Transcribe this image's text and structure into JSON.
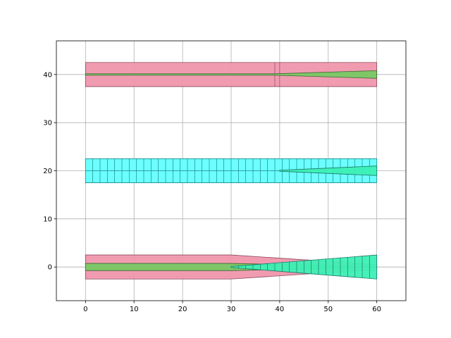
{
  "chart_data": {
    "type": "area",
    "title": "",
    "xlabel": "",
    "ylabel": "",
    "xlim": [
      -6,
      66
    ],
    "ylim": [
      -7,
      47
    ],
    "grid": true,
    "xticks": [
      0,
      10,
      20,
      30,
      40,
      50,
      60
    ],
    "yticks": [
      0,
      10,
      20,
      30,
      40
    ],
    "xtick_labels": [
      "0",
      "10",
      "20",
      "30",
      "40",
      "50",
      "60"
    ],
    "ytick_labels": [
      "0",
      "10",
      "20",
      "30",
      "40"
    ],
    "colors": {
      "pink": "#f096ad",
      "pink_edge": "#8a4a5a",
      "green": "#78c864",
      "green_edge": "#3c6a32",
      "cyan": "#64ffff",
      "cyan_edge": "#1a8a8a",
      "teal": "#3cf0b4",
      "teal_edge": "#1a7a6a"
    },
    "polygons": [
      {
        "fill": "pink",
        "points": [
          [
            0,
            2.5
          ],
          [
            30,
            2.5
          ],
          [
            60,
            0.5
          ],
          [
            60,
            -0.5
          ],
          [
            30,
            -2.5
          ],
          [
            0,
            -2.5
          ]
        ]
      },
      {
        "fill": "green",
        "points": [
          [
            0,
            0.75
          ],
          [
            30,
            0.75
          ],
          [
            60,
            0.05
          ],
          [
            60,
            -0.05
          ],
          [
            30,
            -0.75
          ],
          [
            0,
            -0.75
          ]
        ]
      },
      {
        "fill": "teal",
        "points": [
          [
            30,
            0.1
          ],
          [
            60,
            2.5
          ],
          [
            60,
            -2.5
          ],
          [
            30,
            -0.1
          ]
        ],
        "vlines": [
          31.5,
          33,
          34.5,
          36,
          37.5,
          39,
          40.5,
          42,
          43.5,
          45,
          46.5,
          48,
          49.5,
          51,
          52.5,
          54,
          55.5,
          57,
          58.5
        ]
      },
      {
        "fill": "cyan",
        "points": [
          [
            0,
            17.5
          ],
          [
            60,
            17.5
          ],
          [
            60,
            22.5
          ],
          [
            0,
            22.5
          ]
        ],
        "vlines": [
          1.5,
          3,
          4.5,
          6,
          7.5,
          9,
          10.5,
          12,
          13.5,
          15,
          16.5,
          18,
          19.5,
          21,
          22.5,
          24,
          25.5,
          27,
          28.5,
          30,
          31.5,
          33,
          34.5,
          36,
          37.5,
          39,
          40.5,
          42,
          43.5,
          45,
          46.5,
          48,
          49.5,
          51,
          52.5,
          54,
          55.5,
          57,
          58.5
        ],
        "centerline": [
          0,
          40,
          20
        ]
      },
      {
        "fill": "teal",
        "points": [
          [
            40,
            20.1
          ],
          [
            60,
            21
          ],
          [
            60,
            19
          ],
          [
            40,
            19.9
          ]
        ]
      },
      {
        "fill": "pink",
        "points": [
          [
            0,
            37.5
          ],
          [
            60,
            37.5
          ],
          [
            60,
            42.5
          ],
          [
            0,
            42.5
          ]
        ],
        "vlines": [
          39,
          40
        ]
      },
      {
        "fill": "green",
        "points": [
          [
            0,
            40.15
          ],
          [
            39,
            40.15
          ],
          [
            60,
            40.8
          ],
          [
            60,
            39.2
          ],
          [
            39,
            39.85
          ],
          [
            0,
            39.85
          ]
        ]
      }
    ]
  }
}
